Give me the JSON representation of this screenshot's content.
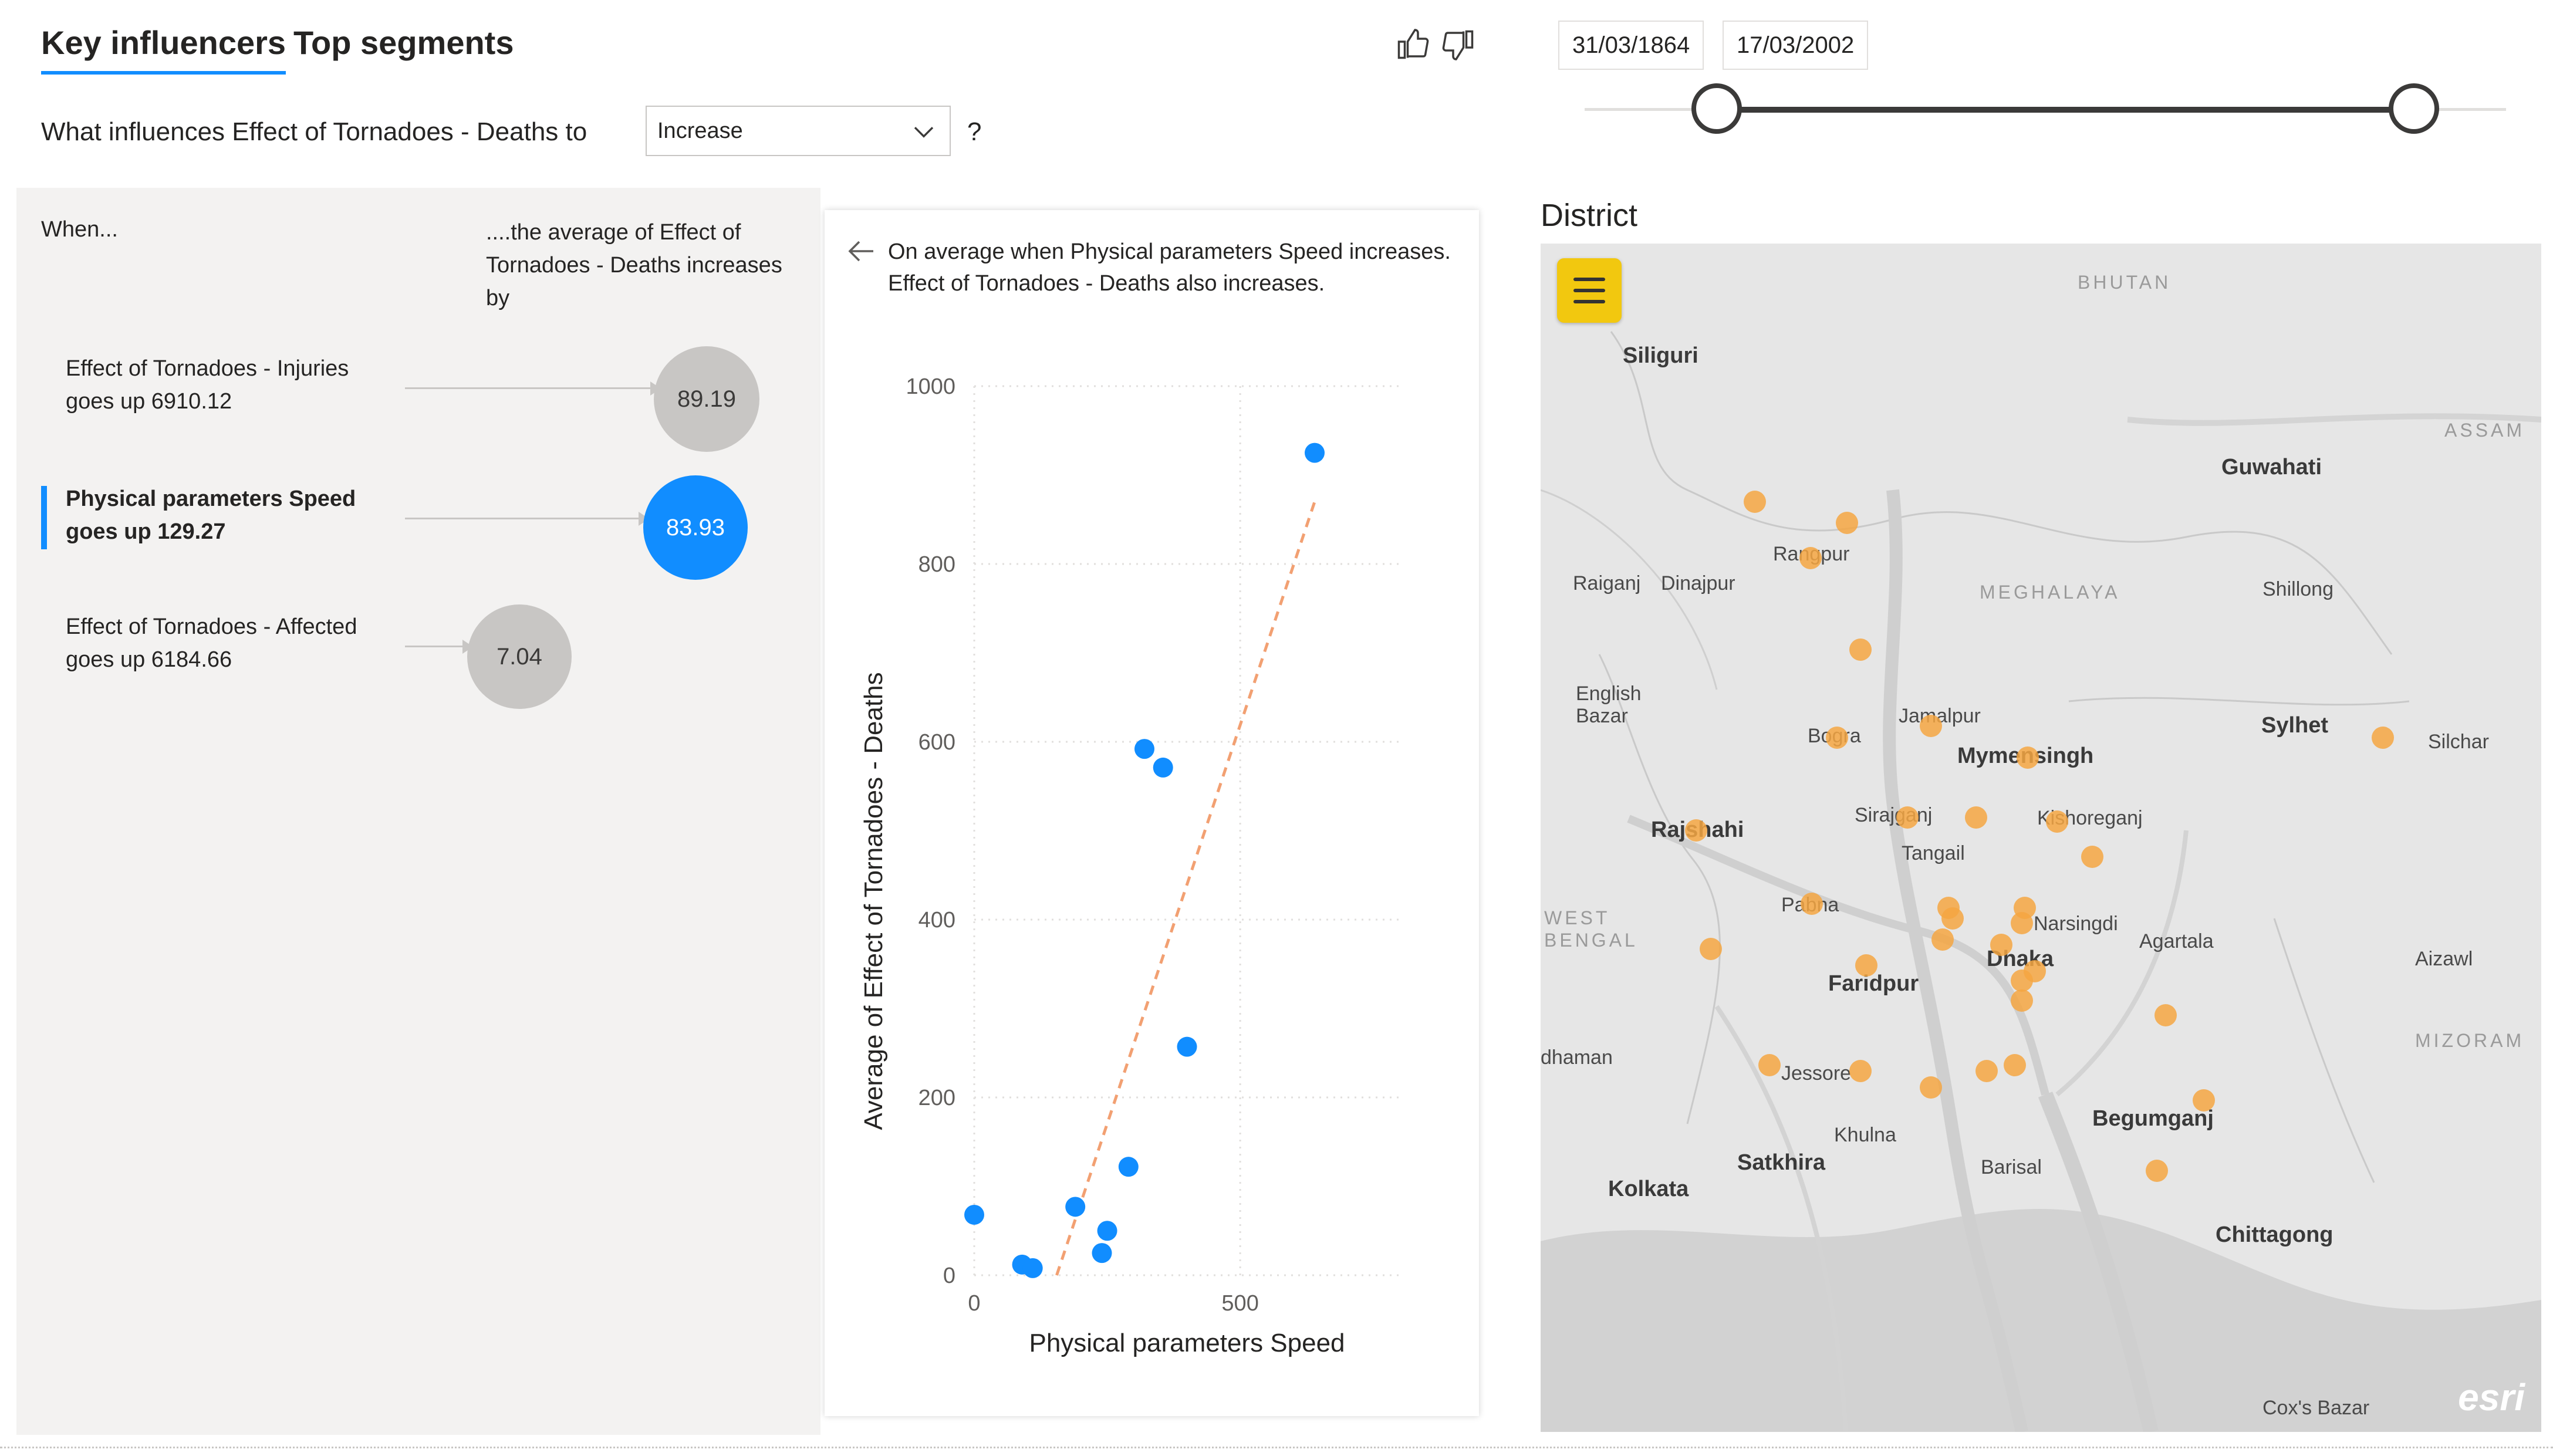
{
  "tabs": [
    {
      "label": "Key influencers",
      "active": true
    },
    {
      "label": "Top segments",
      "active": false
    }
  ],
  "feedback": {
    "like_icon": "thumbs-up-icon",
    "dislike_icon": "thumbs-down-icon"
  },
  "question": {
    "prefix": "What influences Effect of Tornadoes - Deaths to",
    "dropdown_value": "Increase",
    "suffix": "?"
  },
  "influencers_header": {
    "when": "When...",
    "avg": "....the average of Effect of Tornadoes - Deaths increases by"
  },
  "influencers": [
    {
      "text": "Effect of Tornadoes - Injuries goes up 6910.12",
      "value": "89.19",
      "selected": false
    },
    {
      "text": "Physical parameters Speed goes up 129.27",
      "value": "83.93",
      "selected": true
    },
    {
      "text": "Effect of Tornadoes - Affected goes up 6184.66",
      "value": "7.04",
      "selected": false
    }
  ],
  "detail": {
    "explanation": "On average when Physical parameters Speed increases. Effect of Tornadoes - Deaths also increases."
  },
  "chart_data": {
    "type": "scatter",
    "title": "",
    "xlabel": "Physical parameters Speed",
    "ylabel": "Average of Effect of Tornadoes - Deaths",
    "xlim": [
      0,
      800
    ],
    "ylim": [
      0,
      1000
    ],
    "x_ticks": [
      "0",
      "500"
    ],
    "y_ticks": [
      "0",
      "200",
      "400",
      "600",
      "800",
      "1000"
    ],
    "grid": true,
    "points": [
      {
        "x": 0,
        "y": 68
      },
      {
        "x": 90,
        "y": 12
      },
      {
        "x": 110,
        "y": 8
      },
      {
        "x": 190,
        "y": 77
      },
      {
        "x": 240,
        "y": 25
      },
      {
        "x": 250,
        "y": 50
      },
      {
        "x": 290,
        "y": 122
      },
      {
        "x": 320,
        "y": 592
      },
      {
        "x": 355,
        "y": 571
      },
      {
        "x": 400,
        "y": 257
      },
      {
        "x": 640,
        "y": 925
      }
    ],
    "trendline": [
      {
        "x": 155,
        "y": 0
      },
      {
        "x": 640,
        "y": 870
      }
    ],
    "point_color": "#118DFF",
    "trend_color": "#F2A072"
  },
  "date_slider": {
    "start": "31/03/1864",
    "end": "17/03/2002"
  },
  "map": {
    "title": "District",
    "menu_icon": "hamburger-menu-icon",
    "attribution": "esri",
    "places": [
      {
        "name": "BHUTAN",
        "kind": "region"
      },
      {
        "name": "Siliguri",
        "kind": "big"
      },
      {
        "name": "ASSAM",
        "kind": "region"
      },
      {
        "name": "Guwahati",
        "kind": "big"
      },
      {
        "name": "Rangpur",
        "kind": "city"
      },
      {
        "name": "Raiganj",
        "kind": "city"
      },
      {
        "name": "Dinajpur",
        "kind": "city"
      },
      {
        "name": "MEGHALAYA",
        "kind": "region"
      },
      {
        "name": "Shillong",
        "kind": "city"
      },
      {
        "name": "English Bazar",
        "kind": "city"
      },
      {
        "name": "Jamalpur",
        "kind": "city"
      },
      {
        "name": "Sylhet",
        "kind": "big"
      },
      {
        "name": "Silchar",
        "kind": "city"
      },
      {
        "name": "Bogra",
        "kind": "city"
      },
      {
        "name": "Mymensingh",
        "kind": "big"
      },
      {
        "name": "Rajshahi",
        "kind": "big"
      },
      {
        "name": "Sirajganj",
        "kind": "city"
      },
      {
        "name": "Kishoreganj",
        "kind": "city"
      },
      {
        "name": "Tangail",
        "kind": "city"
      },
      {
        "name": "WEST BENGAL",
        "kind": "region"
      },
      {
        "name": "Pabna",
        "kind": "city"
      },
      {
        "name": "Narsingdi",
        "kind": "city"
      },
      {
        "name": "Agartala",
        "kind": "city"
      },
      {
        "name": "Aizawl",
        "kind": "city"
      },
      {
        "name": "Dhaka",
        "kind": "big"
      },
      {
        "name": "Faridpur",
        "kind": "big"
      },
      {
        "name": "MIZORAM",
        "kind": "region"
      },
      {
        "name": "dhaman",
        "kind": "city"
      },
      {
        "name": "Jessore",
        "kind": "city"
      },
      {
        "name": "Begumganj",
        "kind": "big"
      },
      {
        "name": "Khulna",
        "kind": "city"
      },
      {
        "name": "Satkhira",
        "kind": "big"
      },
      {
        "name": "Barisal",
        "kind": "city"
      },
      {
        "name": "Kolkata",
        "kind": "big"
      },
      {
        "name": "Chittagong",
        "kind": "big"
      },
      {
        "name": "Cox's Bazar",
        "kind": "city"
      }
    ]
  }
}
